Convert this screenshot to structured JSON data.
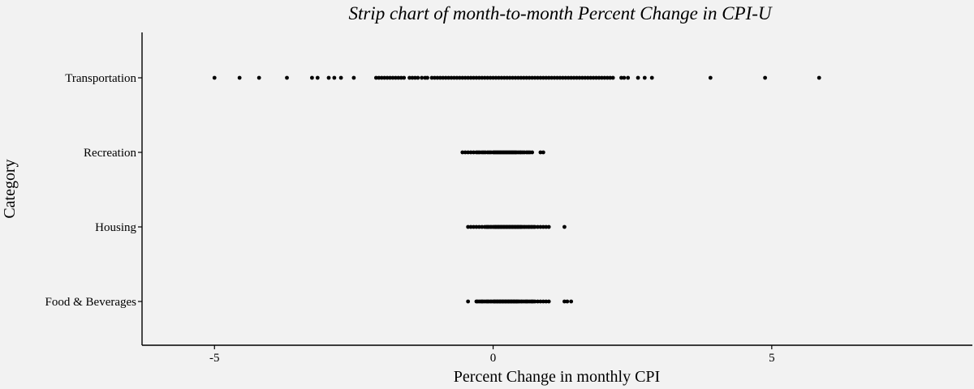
{
  "chart_data": {
    "type": "scatter",
    "subtype": "strip",
    "title": "Strip chart of month-to-month Percent Change in CPI-U",
    "xlabel": "Percent Change in monthly CPI",
    "ylabel": "Category",
    "xlim": [
      -6.3,
      8.6
    ],
    "x_ticks": [
      -5,
      0,
      5
    ],
    "x_tick_labels": [
      "-5",
      "0",
      "5"
    ],
    "categories": [
      "Food & Beverages",
      "Housing",
      "Recreation",
      "Transportation"
    ],
    "grid": false,
    "legend": "none",
    "point_color": "#000000",
    "background_color": "#f2f2f2",
    "series": [
      {
        "category": "Food & Beverages",
        "values": [
          -0.45,
          -0.3,
          -0.28,
          -0.25,
          -0.22,
          -0.2,
          -0.18,
          -0.15,
          -0.12,
          -0.1,
          -0.08,
          -0.05,
          -0.03,
          0.0,
          0.02,
          0.03,
          0.05,
          0.07,
          0.08,
          0.1,
          0.12,
          0.13,
          0.15,
          0.17,
          0.18,
          0.2,
          0.22,
          0.23,
          0.25,
          0.27,
          0.28,
          0.3,
          0.32,
          0.33,
          0.35,
          0.37,
          0.38,
          0.4,
          0.42,
          0.43,
          0.45,
          0.47,
          0.5,
          0.52,
          0.55,
          0.58,
          0.6,
          0.62,
          0.65,
          0.68,
          0.7,
          0.72,
          0.75,
          0.8,
          0.85,
          0.9,
          0.95,
          1.0,
          1.28,
          1.33,
          1.4
        ]
      },
      {
        "category": "Housing",
        "values": [
          -0.45,
          -0.4,
          -0.35,
          -0.3,
          -0.25,
          -0.2,
          -0.15,
          -0.12,
          -0.1,
          -0.08,
          -0.05,
          -0.03,
          0.0,
          0.02,
          0.04,
          0.05,
          0.07,
          0.09,
          0.1,
          0.12,
          0.14,
          0.15,
          0.17,
          0.19,
          0.2,
          0.22,
          0.24,
          0.25,
          0.27,
          0.29,
          0.3,
          0.32,
          0.34,
          0.35,
          0.37,
          0.39,
          0.4,
          0.42,
          0.44,
          0.45,
          0.47,
          0.49,
          0.5,
          0.52,
          0.55,
          0.57,
          0.6,
          0.63,
          0.65,
          0.68,
          0.7,
          0.73,
          0.75,
          0.8,
          0.85,
          0.9,
          0.95,
          1.0,
          1.28
        ]
      },
      {
        "category": "Recreation",
        "values": [
          -0.55,
          -0.5,
          -0.45,
          -0.4,
          -0.35,
          -0.3,
          -0.27,
          -0.24,
          -0.2,
          -0.17,
          -0.14,
          -0.1,
          -0.07,
          -0.04,
          0.0,
          0.02,
          0.04,
          0.06,
          0.08,
          0.1,
          0.12,
          0.14,
          0.16,
          0.18,
          0.2,
          0.22,
          0.24,
          0.26,
          0.28,
          0.3,
          0.32,
          0.34,
          0.36,
          0.38,
          0.4,
          0.42,
          0.45,
          0.48,
          0.5,
          0.53,
          0.56,
          0.6,
          0.63,
          0.66,
          0.7,
          0.85,
          0.9
        ]
      },
      {
        "category": "Transportation",
        "values": [
          -5.0,
          -4.55,
          -4.2,
          -3.7,
          -3.25,
          -3.15,
          -2.95,
          -2.85,
          -2.73,
          -2.5,
          -2.1,
          -2.05,
          -2.0,
          -1.95,
          -1.9,
          -1.85,
          -1.8,
          -1.75,
          -1.7,
          -1.65,
          -1.6,
          -1.5,
          -1.45,
          -1.4,
          -1.35,
          -1.28,
          -1.22,
          -1.18,
          -1.1,
          -1.05,
          -1.0,
          -0.95,
          -0.9,
          -0.85,
          -0.8,
          -0.75,
          -0.7,
          -0.65,
          -0.6,
          -0.55,
          -0.5,
          -0.45,
          -0.4,
          -0.35,
          -0.3,
          -0.25,
          -0.2,
          -0.15,
          -0.1,
          -0.05,
          0.0,
          0.05,
          0.1,
          0.15,
          0.2,
          0.25,
          0.3,
          0.35,
          0.4,
          0.45,
          0.5,
          0.55,
          0.6,
          0.65,
          0.7,
          0.75,
          0.8,
          0.85,
          0.9,
          0.95,
          1.0,
          1.05,
          1.1,
          1.15,
          1.2,
          1.25,
          1.3,
          1.35,
          1.4,
          1.45,
          1.5,
          1.55,
          1.6,
          1.65,
          1.7,
          1.75,
          1.8,
          1.85,
          1.9,
          1.95,
          2.0,
          2.05,
          2.1,
          2.15,
          2.3,
          2.35,
          2.42,
          2.6,
          2.72,
          2.85,
          3.9,
          4.88,
          5.85
        ]
      }
    ]
  }
}
